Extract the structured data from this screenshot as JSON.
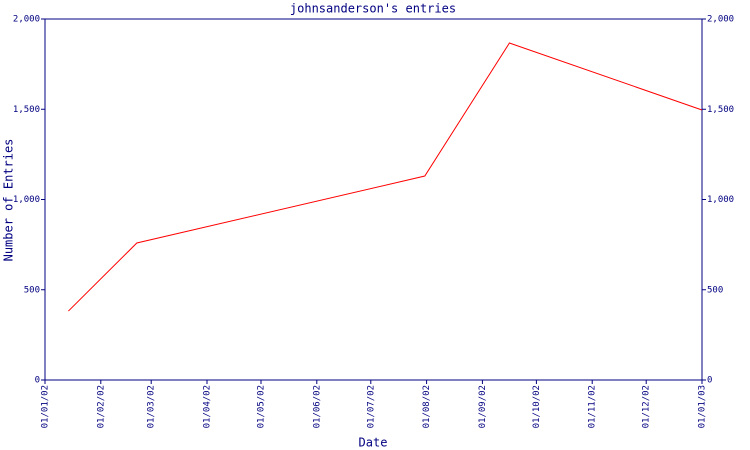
{
  "chart_data": {
    "type": "line",
    "title": "johnsanderson's entries",
    "x_label": "Date",
    "y_label": "Number of Entries",
    "x": [
      "14/01/02",
      "21/02/02",
      "31/07/02",
      "16/09/02",
      "01/01/03"
    ],
    "series": [
      {
        "name": "entries",
        "color": "#ff0000",
        "values": [
          382,
          759,
          1130,
          1867,
          1496
        ]
      }
    ],
    "xlim": [
      "01/01/02",
      "01/01/03"
    ],
    "xticks": [
      "01/01/02",
      "01/02/02",
      "01/03/02",
      "01/04/02",
      "01/05/02",
      "01/06/02",
      "01/07/02",
      "01/08/02",
      "01/09/02",
      "01/10/02",
      "01/11/02",
      "01/12/02",
      "01/01/03"
    ],
    "ylim": [
      0,
      2000
    ],
    "yticks": [
      0,
      500,
      {
        "value": 1000,
        "label": "1,000"
      },
      {
        "value": 1500,
        "label": "1,500"
      },
      {
        "value": 2000,
        "label": "2,000"
      }
    ],
    "axis_color": "#000080",
    "right_axis_mirror": true
  }
}
